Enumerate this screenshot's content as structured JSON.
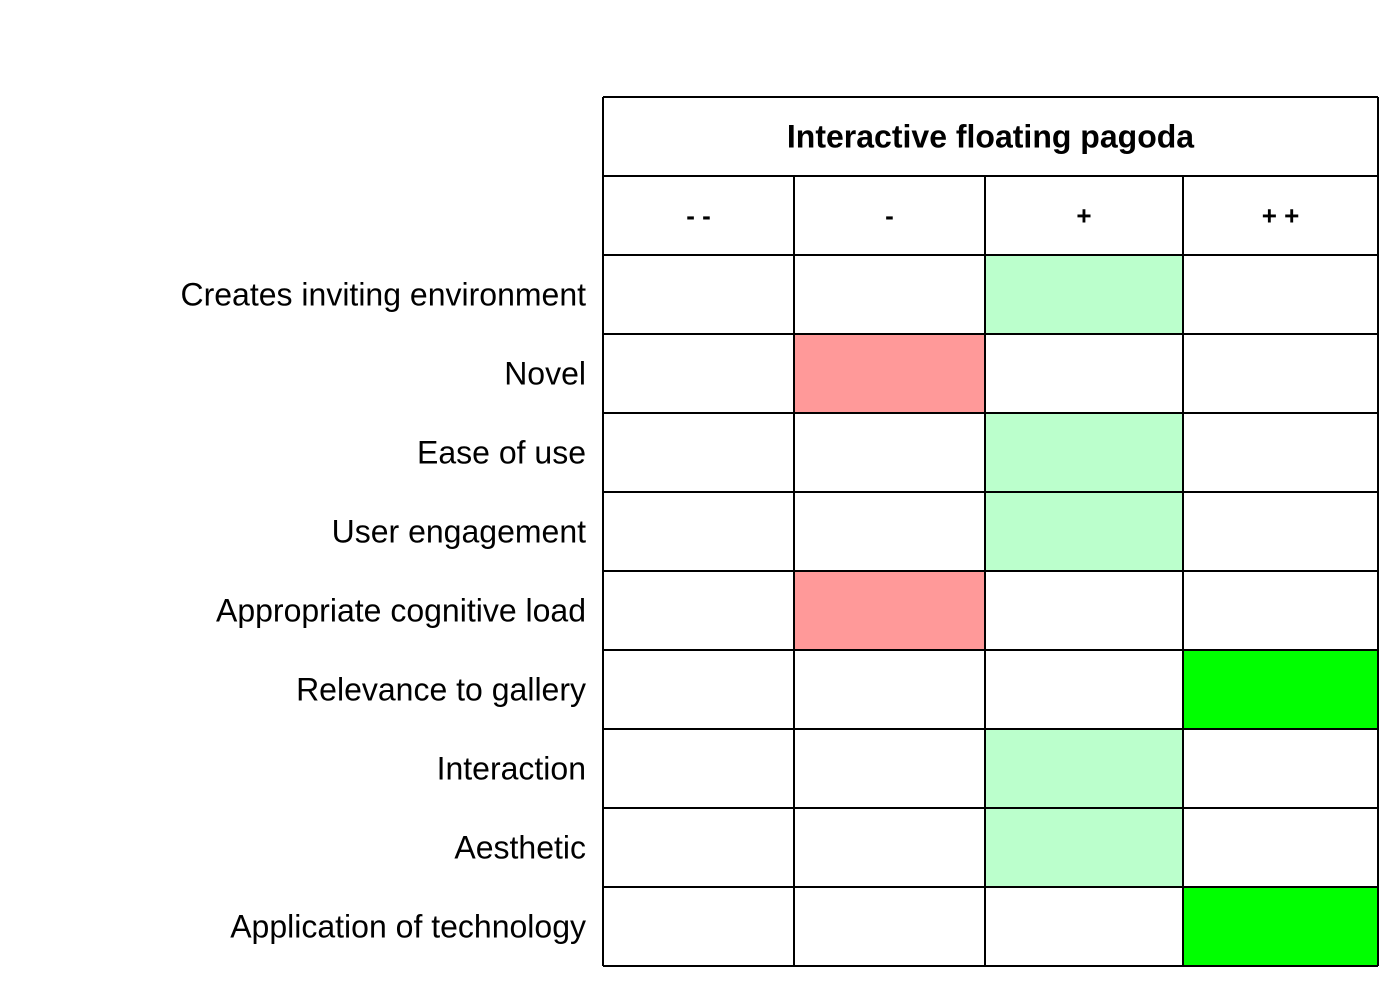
{
  "chart_data": {
    "type": "heatmap",
    "title": "Interactive floating pagoda",
    "columns": [
      "- -",
      "-",
      "+",
      "+ +"
    ],
    "rows": [
      {
        "label": "Creates inviting environment",
        "rating": "+"
      },
      {
        "label": "Novel",
        "rating": "-"
      },
      {
        "label": "Ease of use",
        "rating": "+"
      },
      {
        "label": "User engagement",
        "rating": "+"
      },
      {
        "label": "Appropriate cognitive load",
        "rating": "-"
      },
      {
        "label": "Relevance to gallery",
        "rating": "+ +"
      },
      {
        "label": "Interaction",
        "rating": "+"
      },
      {
        "label": "Aesthetic",
        "rating": "+"
      },
      {
        "label": "Application of technology",
        "rating": "+ +"
      }
    ],
    "colors": {
      "- -": "#ff6666",
      "-": "#ff9999",
      "+": "#bbffcc",
      "+ +": "#00ff00",
      "empty": "#ffffff",
      "border": "#000000"
    }
  }
}
